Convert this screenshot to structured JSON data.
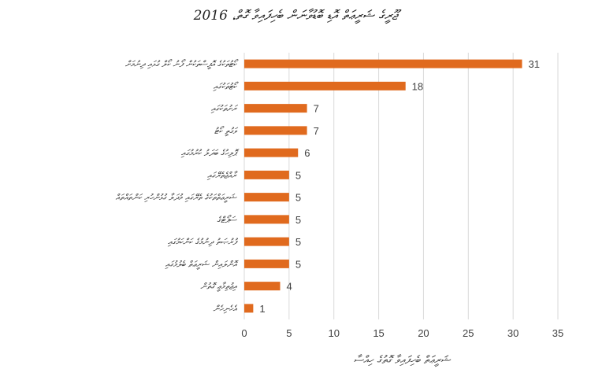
{
  "chart_data": {
    "type": "bar",
    "orientation": "horizontal",
    "title": "ޖޫރީގެ ޝަރީޢަތް އޮޑި ބޮޑުވާނަން ބެހިފައިވާ ގޮތް، 2016",
    "xlabel": "ޝަރީޢަތް ބެހިފައިވާ ގޮތުގެ ހިއްސާ",
    "ylabel": "",
    "categories": [
      "ކޯޓުތަކުގެ އޮފީސްތަކުން ފޯނު ކޯލް ގުޅައި ދިނުމަށް",
      "ކޯޓުތަކުގައި",
      "ރަށުތަކުގައި",
      "ވަގުތީ ކޯޓު",
      "ޕޮލިހުގެ ބަދަލު ކުރުމުގައި",
      "ރާއްޖެތެރޭގައި",
      "ޝަރީޢަތްތަކުގެ ތެރޭގައި މުދަލާ ގުޅުންހުރި ކަންތައްތައް",
      "ސަޕޯޓްގެ",
      "ފުރުޞަތު ދިނުމުގެ ކަންކަމުގައި",
      "އޮންލައިން ޝަރީޢަތް ބެލުމުގައި",
      "އިޖުތިމާޢީ ގޮތުން",
      "އެހެނިހެން"
    ],
    "values": [
      31,
      18,
      7,
      7,
      6,
      5,
      5,
      5,
      5,
      5,
      4,
      1
    ],
    "xlim": [
      0,
      35
    ],
    "xticks": [
      0,
      5,
      10,
      15,
      20,
      25,
      30,
      35
    ],
    "grid": true,
    "legend": "none",
    "colors": {
      "bar": "#E06A1E",
      "grid": "#d9d9d9",
      "text": "#404040"
    }
  }
}
